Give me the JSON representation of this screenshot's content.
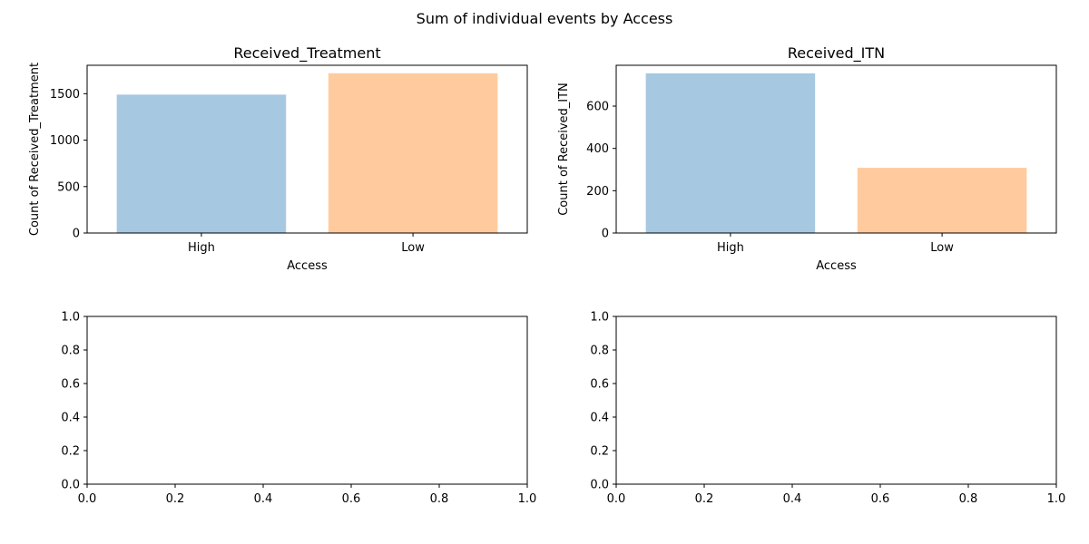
{
  "figure": {
    "suptitle": "Sum of individual events by Access"
  },
  "chart_data": [
    {
      "type": "bar",
      "title": "Received_Treatment",
      "xlabel": "Access",
      "ylabel": "Count of Received_Treatment",
      "categories": [
        "High",
        "Low"
      ],
      "values": [
        1490,
        1720
      ],
      "colors": [
        "#a6c8e0",
        "#ffcb9e"
      ],
      "ylim": [
        0,
        1806
      ],
      "yticks": [
        0,
        500,
        1000,
        1500
      ],
      "grid": false
    },
    {
      "type": "bar",
      "title": "Received_ITN",
      "xlabel": "Access",
      "ylabel": "Count of Received_ITN",
      "categories": [
        "High",
        "Low"
      ],
      "values": [
        755,
        308
      ],
      "colors": [
        "#a6c8e0",
        "#ffcb9e"
      ],
      "ylim": [
        0,
        793
      ],
      "yticks": [
        0,
        200,
        400,
        600
      ],
      "grid": false
    },
    {
      "type": "line",
      "title": "",
      "xlabel": "",
      "ylabel": "",
      "series": [],
      "xlim": [
        0,
        1
      ],
      "ylim": [
        0,
        1
      ],
      "xticks": [
        "0.0",
        "0.2",
        "0.4",
        "0.6",
        "0.8",
        "1.0"
      ],
      "yticks": [
        "0.0",
        "0.2",
        "0.4",
        "0.6",
        "0.8",
        "1.0"
      ],
      "grid": false
    },
    {
      "type": "line",
      "title": "",
      "xlabel": "",
      "ylabel": "",
      "series": [],
      "xlim": [
        0,
        1
      ],
      "ylim": [
        0,
        1
      ],
      "xticks": [
        "0.0",
        "0.2",
        "0.4",
        "0.6",
        "0.8",
        "1.0"
      ],
      "yticks": [
        "0.0",
        "0.2",
        "0.4",
        "0.6",
        "0.8",
        "1.0"
      ],
      "grid": false
    }
  ]
}
